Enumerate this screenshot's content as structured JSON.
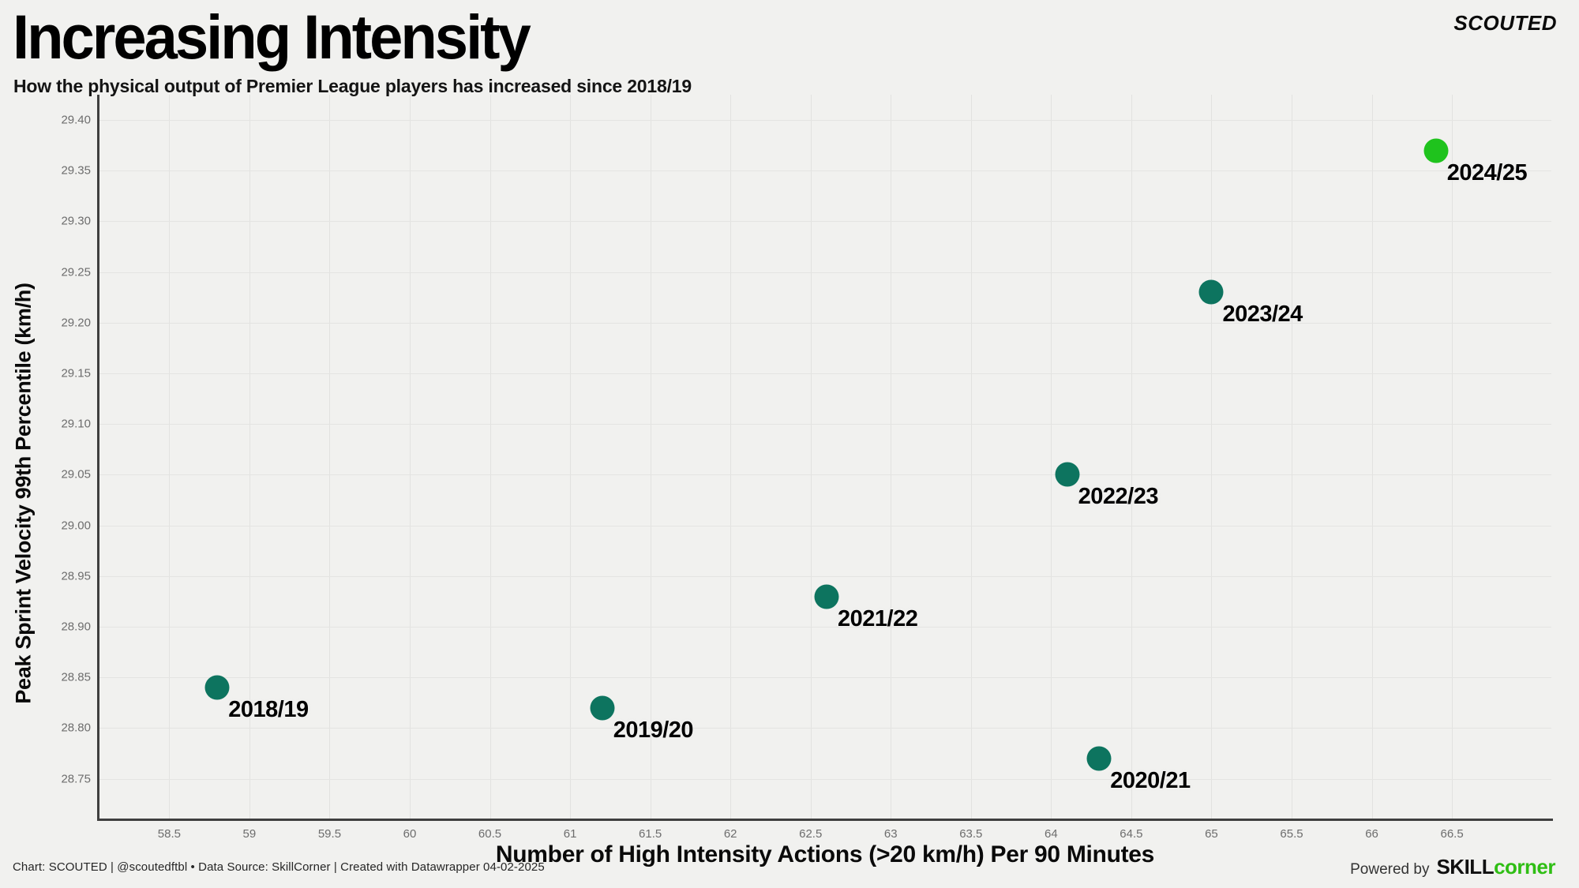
{
  "header": {
    "title": "Increasing Intensity",
    "subtitle": "How the physical output of Premier League players has increased since 2018/19",
    "brand": "SCOUTED"
  },
  "chart_data": {
    "type": "scatter",
    "title": "Increasing Intensity",
    "subtitle": "How the physical output of Premier League players has increased since 2018/19",
    "xlabel": "Number of High Intensity Actions (>20 km/h) Per 90 Minutes",
    "ylabel": "Peak Sprint Velocity 99th Percentile (km/h)",
    "xlim": [
      58.06,
      67.12
    ],
    "ylim": [
      28.71,
      29.425
    ],
    "grid": true,
    "legend": "none",
    "x_ticks": [
      "58.5",
      "59",
      "59.5",
      "60",
      "60.5",
      "61",
      "61.5",
      "62",
      "62.5",
      "63",
      "63.5",
      "64",
      "64.5",
      "65",
      "65.5",
      "66",
      "66.5"
    ],
    "y_ticks": [
      "28.75",
      "28.80",
      "28.85",
      "28.90",
      "28.95",
      "29.00",
      "29.05",
      "29.10",
      "29.15",
      "29.20",
      "29.25",
      "29.30",
      "29.35",
      "29.40"
    ],
    "points": [
      {
        "label": "2018/19",
        "x": 58.8,
        "y": 28.84,
        "color": "#0d745f"
      },
      {
        "label": "2019/20",
        "x": 61.2,
        "y": 28.82,
        "color": "#0d745f"
      },
      {
        "label": "2020/21",
        "x": 64.3,
        "y": 28.77,
        "color": "#0d745f"
      },
      {
        "label": "2021/22",
        "x": 62.6,
        "y": 28.93,
        "color": "#0d745f"
      },
      {
        "label": "2022/23",
        "x": 64.1,
        "y": 29.05,
        "color": "#0d745f"
      },
      {
        "label": "2023/24",
        "x": 65.0,
        "y": 29.23,
        "color": "#0d745f"
      },
      {
        "label": "2024/25",
        "x": 66.4,
        "y": 29.37,
        "color": "#1fc31d",
        "highlight": true
      }
    ]
  },
  "colors": {
    "background": "#f1f1ef",
    "gridline": "#e3e3e1",
    "axis_line": "#3f3f3f",
    "tick_text": "#6d6d6d",
    "point_default": "#0d745f",
    "point_highlight": "#1fc31d",
    "brand_green": "#2fbe14"
  },
  "footer": {
    "credit": "Chart: SCOUTED | @scoutedftbl • Data Source: SkillCorner | Created with Datawrapper 04-02-2025",
    "powered_by": "Powered by",
    "brand_bold": "SKILL",
    "brand_green_text": "corner"
  }
}
